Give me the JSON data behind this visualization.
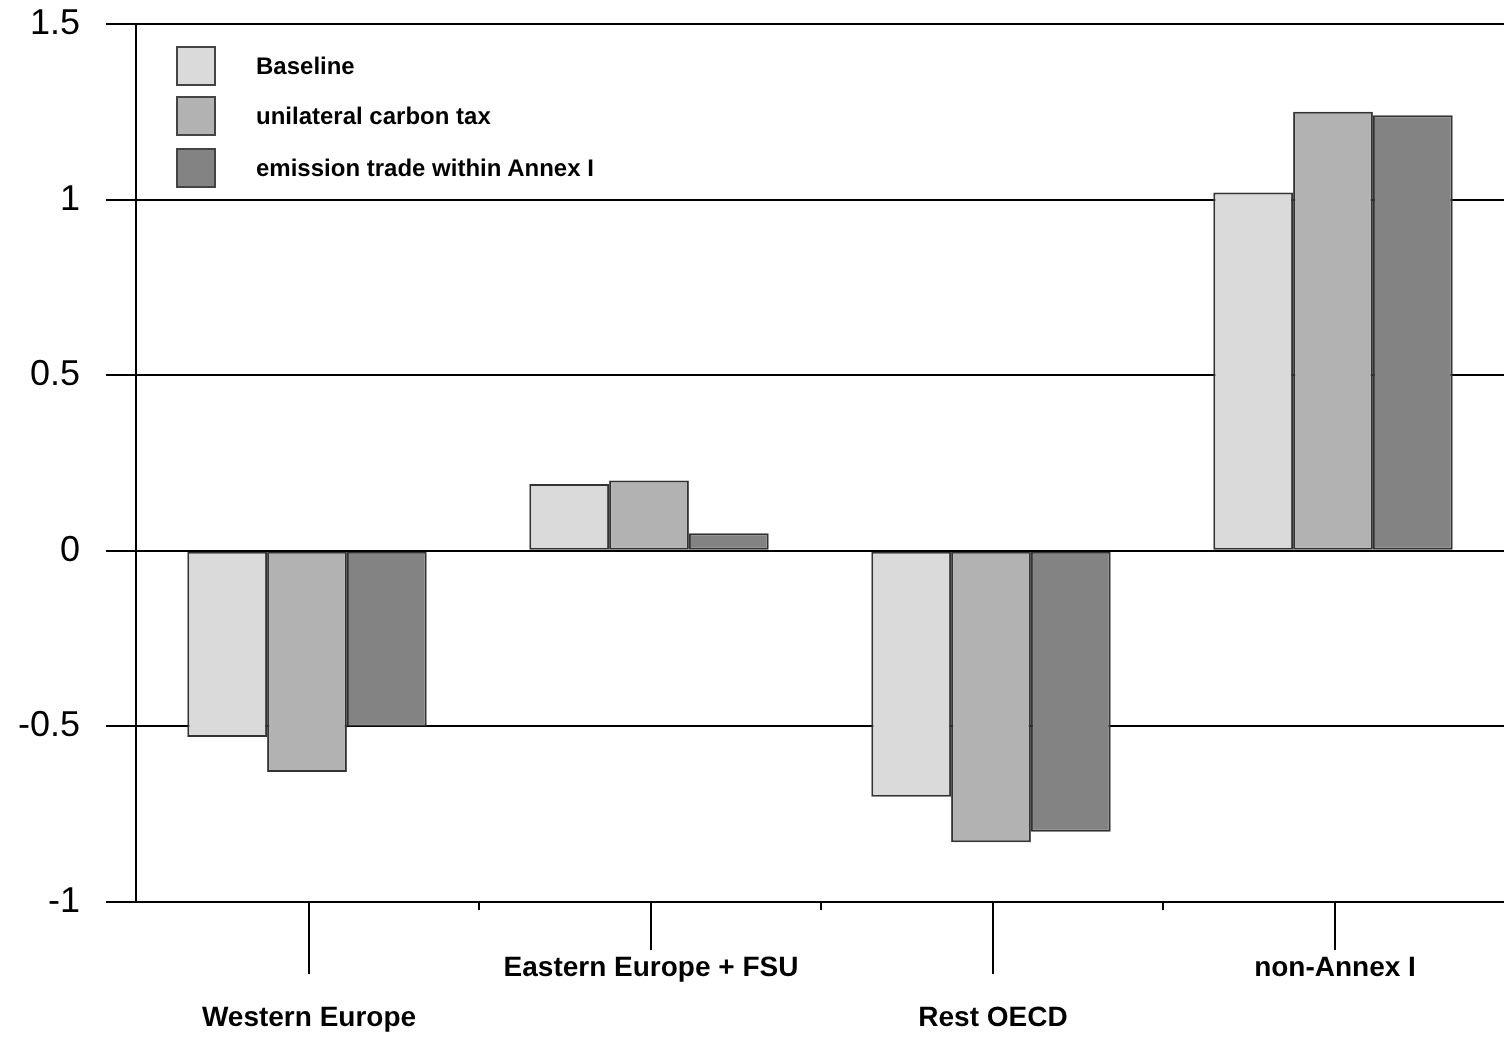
{
  "chart_data": {
    "type": "bar",
    "categories": [
      "Western Europe",
      "Eastern Europe + FSU",
      "Rest OECD",
      "non-Annex I"
    ],
    "series": [
      {
        "name": "Baseline",
        "color": "#dadada",
        "values": [
          -0.53,
          0.19,
          -0.7,
          1.02
        ]
      },
      {
        "name": "unilateral carbon tax",
        "color": "#b2b2b2",
        "values": [
          -0.63,
          0.2,
          -0.83,
          1.25
        ]
      },
      {
        "name": "emission trade within Annex I",
        "color": "#838383",
        "values": [
          -0.5,
          0.05,
          -0.8,
          1.24
        ]
      }
    ],
    "ylim": [
      -1,
      1.5
    ],
    "yticks": [
      -1,
      -0.5,
      0,
      0.5,
      1,
      1.5
    ],
    "grid": "y",
    "legend": "top left"
  }
}
